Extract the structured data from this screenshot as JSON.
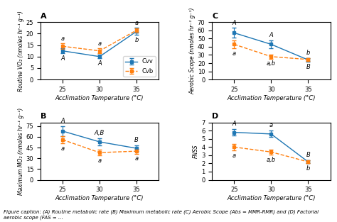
{
  "chart_data": [
    {
      "type": "line",
      "title": "A",
      "xlabel": "Acclimation Temperature (°C)",
      "ylabel": "Routine VO₂ (nmoles hr⁻¹ g⁻¹)",
      "x": [
        25,
        30,
        35
      ],
      "xlim": [
        22,
        38
      ],
      "xticks": [
        25,
        30,
        35
      ],
      "ylim": [
        0,
        25
      ],
      "yticks": [
        0,
        5,
        10,
        15,
        20,
        25
      ],
      "legend": "lower right",
      "series": [
        {
          "name": "Cvv",
          "values": [
            12.5,
            10.0,
            21.0
          ],
          "error": [
            1.0,
            0.8,
            1.5
          ],
          "annotations": [
            "A",
            "A",
            "b"
          ],
          "marker": "square",
          "line_style": "solid"
        },
        {
          "name": "Cvb",
          "values": [
            14.5,
            12.5,
            21.5
          ],
          "error": [
            1.2,
            1.0,
            0.9
          ],
          "annotations": [
            "a",
            "a",
            "a"
          ],
          "marker": "square",
          "line_style": "dashed"
        }
      ]
    },
    {
      "type": "line",
      "title": "C",
      "xlabel": "Acclimation Temperature (°C)",
      "ylabel": "Aerobic Scope (nmoles hr⁻¹ g⁻¹)",
      "x": [
        25,
        30,
        35
      ],
      "xlim": [
        22,
        38
      ],
      "xticks": [
        25,
        30,
        35
      ],
      "ylim": [
        0,
        70
      ],
      "yticks": [
        0,
        10,
        20,
        30,
        40,
        50,
        60,
        70
      ],
      "series": [
        {
          "name": "Cvv",
          "values": [
            57.0,
            43.0,
            24.0
          ],
          "error": [
            6.0,
            4.5,
            2.5
          ],
          "annotations": [
            "A",
            "A",
            "B"
          ],
          "marker": "square",
          "line_style": "solid"
        },
        {
          "name": "Cvb",
          "values": [
            43.0,
            28.0,
            24.5
          ],
          "error": [
            5.0,
            2.5,
            2.0
          ],
          "annotations": [
            "a",
            "a,b",
            "b"
          ],
          "marker": "square",
          "line_style": "dashed"
        }
      ]
    },
    {
      "type": "line",
      "title": "B",
      "xlabel": "Acclimation Temperature (°C)",
      "ylabel": "Maximum MO₂ (nmoles hr⁻¹ g⁻¹)",
      "x": [
        25,
        30,
        35
      ],
      "xlim": [
        22,
        38
      ],
      "xticks": [
        25,
        30,
        35
      ],
      "ylim": [
        0,
        80
      ],
      "yticks": [
        0,
        15,
        30,
        45,
        60,
        75
      ],
      "series": [
        {
          "name": "Cvv",
          "values": [
            68.0,
            53.0,
            44.0
          ],
          "error": [
            7.0,
            5.0,
            4.0
          ],
          "annotations": [
            "A",
            "A,B",
            "B"
          ],
          "marker": "square",
          "line_style": "solid"
        },
        {
          "name": "Cvb",
          "values": [
            56.0,
            38.0,
            40.0
          ],
          "error": [
            5.0,
            4.0,
            3.5
          ],
          "annotations": [
            "a",
            "a",
            "a"
          ],
          "marker": "square",
          "line_style": "dashed"
        }
      ]
    },
    {
      "type": "line",
      "title": "D",
      "xlabel": "Acclimation Temperature (°C)",
      "ylabel": "FNSS",
      "x": [
        25,
        30,
        35
      ],
      "xlim": [
        22,
        38
      ],
      "xticks": [
        25,
        30,
        35
      ],
      "ylim": [
        0,
        7
      ],
      "yticks": [
        0,
        1,
        2,
        3,
        4,
        5,
        6,
        7
      ],
      "series": [
        {
          "name": "Cvv",
          "values": [
            5.8,
            5.6,
            2.2
          ],
          "error": [
            0.4,
            0.4,
            0.2
          ],
          "annotations": [
            "A",
            "a",
            "B"
          ],
          "marker": "square",
          "line_style": "solid"
        },
        {
          "name": "Cvb",
          "values": [
            4.0,
            3.4,
            2.2
          ],
          "error": [
            0.4,
            0.3,
            0.2
          ],
          "annotations": [
            "a",
            "a,b",
            "b"
          ],
          "marker": "square",
          "line_style": "dashed"
        }
      ]
    }
  ],
  "caption": "Figure caption: (A) Routine metabolic rate (B) Maximum metabolic rate (C) Aerobic Scope (Abs = MMR-RMR) and (D) Factorial aerobic scope (FAS = ..."
}
